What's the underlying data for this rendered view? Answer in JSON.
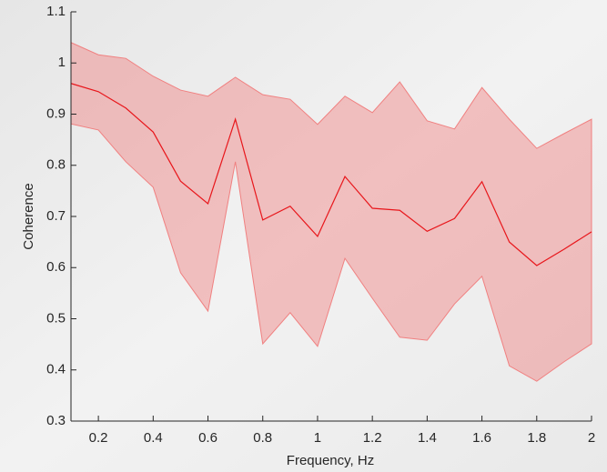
{
  "chart_data": {
    "type": "line",
    "xlabel": "Frequency, Hz",
    "ylabel": "Coherence",
    "x": [
      0.1,
      0.2,
      0.3,
      0.4,
      0.5,
      0.6,
      0.7,
      0.8,
      0.9,
      1.0,
      1.1,
      1.2,
      1.3,
      1.4,
      1.5,
      1.6,
      1.7,
      1.8,
      1.9,
      2.0
    ],
    "series": [
      {
        "color": "#e8161b",
        "values": [
          0.96,
          0.944,
          0.912,
          0.865,
          0.769,
          0.725,
          0.89,
          0.693,
          0.72,
          0.661,
          0.778,
          0.716,
          0.712,
          0.671,
          0.696,
          0.768,
          0.65,
          0.604,
          0.636,
          0.67
        ]
      }
    ],
    "band": {
      "color": "#f08080",
      "upper": [
        1.04,
        1.016,
        1.009,
        0.974,
        0.947,
        0.935,
        0.972,
        0.938,
        0.929,
        0.88,
        0.935,
        0.903,
        0.963,
        0.887,
        0.871,
        0.952,
        0.89,
        0.833,
        0.862,
        0.89
      ],
      "lower": [
        0.881,
        0.869,
        0.807,
        0.757,
        0.59,
        0.515,
        0.807,
        0.451,
        0.512,
        0.446,
        0.618,
        0.54,
        0.464,
        0.458,
        0.529,
        0.583,
        0.408,
        0.378,
        0.416,
        0.451
      ]
    },
    "xlim": [
      0.1,
      2
    ],
    "ylim": [
      0.3,
      1.1
    ],
    "xticks": [
      0.2,
      0.4,
      0.6,
      0.8,
      1,
      1.2,
      1.4,
      1.6,
      1.8,
      2
    ],
    "yticks": [
      0.3,
      0.4,
      0.5,
      0.6,
      0.7,
      0.8,
      0.9,
      1,
      1.1
    ]
  }
}
